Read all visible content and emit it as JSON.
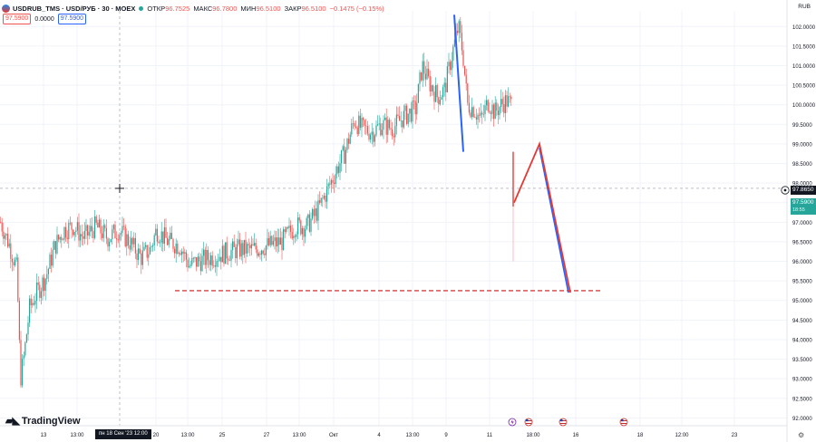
{
  "header": {
    "symbol": "USDRUB_TMS · USD/РУБ · 30 · MOEX",
    "open_label": "ОТКР",
    "open_value": "96.7525",
    "high_label": "МАКС",
    "high_value": "96.7800",
    "low_label": "МИН",
    "low_value": "96.5100",
    "close_label": "ЗАКР",
    "close_value": "96.5100",
    "change": "−0.1475 (−0.15%)",
    "bid": "97.5900",
    "spread": "0.0000",
    "ask": "97.5900",
    "currency": "RUB"
  },
  "brand": "TradingView",
  "crosshair_price": "97.8650",
  "last_price": "97.5900",
  "countdown": "18:55",
  "crosshair_date": "пн 18 Сен '23   12:00",
  "colors": {
    "up": "#26a69a",
    "down": "#ef5350",
    "blue_line": "#2962ff",
    "red_line": "#e53935",
    "grid": "#f0f3fa"
  },
  "chart_data": {
    "type": "candlestick",
    "title": "USDRUB_TMS · USD/РУБ · 30 · MOEX",
    "ylim": [
      91.8,
      102.4
    ],
    "xlim": [
      0,
      900
    ],
    "y_ticks": [
      "102.0000",
      "101.5000",
      "101.0000",
      "100.5000",
      "100.0000",
      "99.5000",
      "99.0000",
      "98.5000",
      "98.0000",
      "97.5000",
      "97.0000",
      "96.5000",
      "96.0000",
      "95.5000",
      "95.0000",
      "94.5000",
      "94.0000",
      "93.5000",
      "93.0000",
      "92.5000",
      "92.0000"
    ],
    "x_ticks": [
      {
        "x": 48,
        "label": "13"
      },
      {
        "x": 85,
        "label": "13:00"
      },
      {
        "x": 172,
        "label": "20"
      },
      {
        "x": 207,
        "label": "13:00"
      },
      {
        "x": 245,
        "label": "25"
      },
      {
        "x": 294,
        "label": "27"
      },
      {
        "x": 330,
        "label": "13:00"
      },
      {
        "x": 368,
        "label": "Окт"
      },
      {
        "x": 418,
        "label": "4"
      },
      {
        "x": 455,
        "label": "13:00"
      },
      {
        "x": 492,
        "label": "9"
      },
      {
        "x": 540,
        "label": "11"
      },
      {
        "x": 588,
        "label": "18:00"
      },
      {
        "x": 635,
        "label": "16"
      },
      {
        "x": 706,
        "label": "18"
      },
      {
        "x": 752,
        "label": "12:00"
      },
      {
        "x": 810,
        "label": "23"
      }
    ],
    "price_path": [
      [
        0,
        97.0
      ],
      [
        10,
        96.4
      ],
      [
        18,
        95.8
      ],
      [
        22,
        93.0
      ],
      [
        26,
        93.6
      ],
      [
        32,
        94.8
      ],
      [
        40,
        95.2
      ],
      [
        50,
        95.6
      ],
      [
        60,
        96.4
      ],
      [
        70,
        96.8
      ],
      [
        80,
        96.9
      ],
      [
        92,
        96.6
      ],
      [
        105,
        96.9
      ],
      [
        118,
        96.6
      ],
      [
        130,
        96.8
      ],
      [
        142,
        96.5
      ],
      [
        155,
        96.1
      ],
      [
        165,
        96.3
      ],
      [
        172,
        96.8
      ],
      [
        185,
        96.5
      ],
      [
        198,
        96.4
      ],
      [
        208,
        95.9
      ],
      [
        218,
        96.0
      ],
      [
        232,
        96.1
      ],
      [
        246,
        96.2
      ],
      [
        262,
        96.3
      ],
      [
        278,
        96.3
      ],
      [
        294,
        96.4
      ],
      [
        310,
        96.5
      ],
      [
        325,
        96.9
      ],
      [
        338,
        96.9
      ],
      [
        350,
        97.3
      ],
      [
        360,
        97.8
      ],
      [
        370,
        98.3
      ],
      [
        380,
        98.8
      ],
      [
        390,
        99.6
      ],
      [
        398,
        99.4
      ],
      [
        410,
        99.3
      ],
      [
        420,
        99.5
      ],
      [
        432,
        99.4
      ],
      [
        445,
        99.7
      ],
      [
        458,
        99.9
      ],
      [
        465,
        101.0
      ],
      [
        472,
        100.6
      ],
      [
        482,
        100.2
      ],
      [
        490,
        100.4
      ],
      [
        497,
        101.2
      ],
      [
        505,
        102.0
      ],
      [
        510,
        101.3
      ],
      [
        515,
        100.0
      ],
      [
        522,
        99.9
      ],
      [
        530,
        99.6
      ],
      [
        538,
        100.1
      ],
      [
        545,
        99.8
      ],
      [
        552,
        100.0
      ],
      [
        558,
        100.1
      ],
      [
        564,
        100.0
      ]
    ],
    "spike": {
      "x": 566,
      "high": 98.8,
      "low": 96.0,
      "close": 97.4
    },
    "annotations": {
      "blue_down": [
        [
          501,
          102.3
        ],
        [
          511,
          98.8
        ]
      ],
      "red_zigzag": [
        [
          567,
          97.5
        ],
        [
          595,
          99.0
        ],
        [
          629,
          95.2
        ]
      ],
      "blue_zigzag_down": [
        [
          595,
          98.9
        ],
        [
          627,
          95.2
        ]
      ],
      "red_dashed_level": {
        "y": 95.25,
        "x1": 193,
        "x2": 664
      },
      "crosshair": {
        "x": 132,
        "y": 97.865
      }
    },
    "event_markers": [
      {
        "x": 565,
        "type": "flash"
      },
      {
        "x": 583,
        "type": "flag"
      },
      {
        "x": 621,
        "type": "flag"
      },
      {
        "x": 688,
        "type": "flag"
      }
    ]
  }
}
